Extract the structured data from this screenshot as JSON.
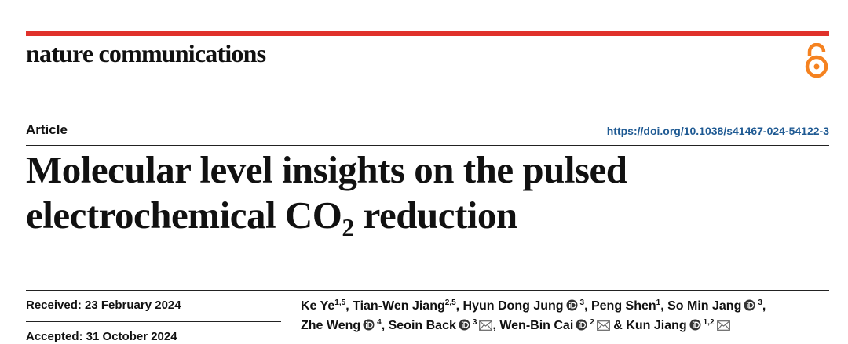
{
  "header": {
    "journal": "nature communications",
    "article_type": "Article",
    "doi": "https://doi.org/10.1038/s41467-024-54122-3"
  },
  "title": {
    "line1": "Molecular level insights on the pulsed",
    "line2_before": "electrochemical CO",
    "line2_sub": "2",
    "line2_after": " reduction"
  },
  "dates": {
    "received": "Received: 23 February 2024",
    "accepted": "Accepted: 31 October 2024"
  },
  "author_lines": [
    [
      {
        "name": "Ke Ye",
        "aff": "1,5",
        "orcid": false,
        "mail": false,
        "separator": ", "
      },
      {
        "name": "Tian-Wen Jiang",
        "aff": "2,5",
        "orcid": false,
        "mail": false,
        "separator": ", "
      },
      {
        "name": "Hyun Dong Jung",
        "aff": "3",
        "orcid": true,
        "mail": false,
        "separator": ", "
      },
      {
        "name": "Peng Shen",
        "aff": "1",
        "orcid": false,
        "mail": false,
        "separator": ", "
      },
      {
        "name": "So Min Jang",
        "aff": "3",
        "orcid": true,
        "mail": false,
        "separator": ","
      }
    ],
    [
      {
        "name": "Zhe Weng",
        "aff": "4",
        "orcid": true,
        "mail": false,
        "separator": ", "
      },
      {
        "name": "Seoin Back",
        "aff": "3",
        "orcid": true,
        "mail": true,
        "separator": ", "
      },
      {
        "name": "Wen-Bin Cai",
        "aff": "2",
        "orcid": true,
        "mail": true,
        "separator": " "
      },
      {
        "prefix": "& ",
        "name": "Kun Jiang",
        "aff": "1,2",
        "orcid": true,
        "mail": true
      }
    ]
  ]
}
